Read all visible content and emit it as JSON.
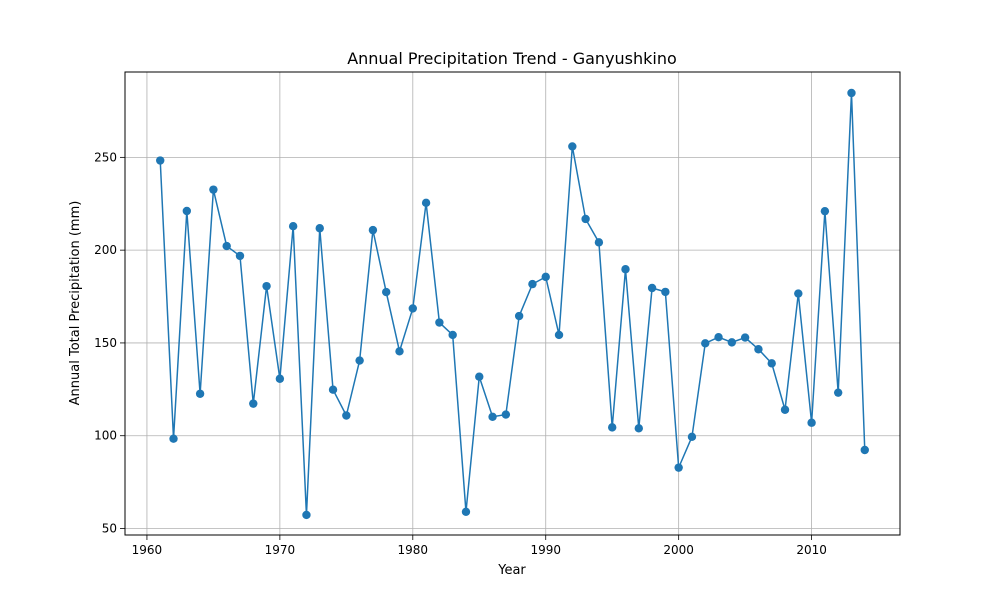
{
  "chart_data": {
    "type": "line",
    "title": "Annual Precipitation Trend - Ganyushkino",
    "xlabel": "Year",
    "ylabel": "Annual Total Precipitation (mm)",
    "xlim": [
      1958.35,
      2016.65
    ],
    "ylim": [
      46.5,
      296
    ],
    "xticks": [
      1960,
      1970,
      1980,
      1990,
      2000,
      2010
    ],
    "yticks": [
      50,
      100,
      150,
      200,
      250
    ],
    "grid": true,
    "colors": {
      "line": "#1f77b4",
      "marker": "#1f77b4",
      "grid": "#b0b0b0"
    },
    "series": [
      {
        "x": [
          1961,
          1962,
          1963,
          1964,
          1965,
          1966,
          1967,
          1968,
          1969,
          1970,
          1971,
          1972,
          1973,
          1974,
          1975,
          1976,
          1977,
          1978,
          1979,
          1980,
          1981,
          1982,
          1983,
          1984,
          1985,
          1986,
          1987,
          1988,
          1989,
          1990,
          1991,
          1992,
          1993,
          1994,
          1995,
          1996,
          1997,
          1998,
          1999,
          2000,
          2001,
          2002,
          2003,
          2004,
          2005,
          2006,
          2007,
          2008,
          2009,
          2010,
          2011,
          2012,
          2013,
          2014
        ],
        "y": [
          248.3,
          98.4,
          221.1,
          122.6,
          232.6,
          202.2,
          196.9,
          117.3,
          180.6,
          130.7,
          212.9,
          57.3,
          211.8,
          124.8,
          110.9,
          140.5,
          210.8,
          177.4,
          145.5,
          168.6,
          225.5,
          161.0,
          154.3,
          59.0,
          131.8,
          110.2,
          111.4,
          164.5,
          181.7,
          185.6,
          154.3,
          255.9,
          216.8,
          204.2,
          104.5,
          189.7,
          104.0,
          179.6,
          177.5,
          82.8,
          99.4,
          149.8,
          153.1,
          150.3,
          152.9,
          146.6,
          139.0,
          114.0,
          176.6,
          107.0,
          221.0,
          123.2,
          284.7,
          92.3
        ]
      }
    ]
  }
}
